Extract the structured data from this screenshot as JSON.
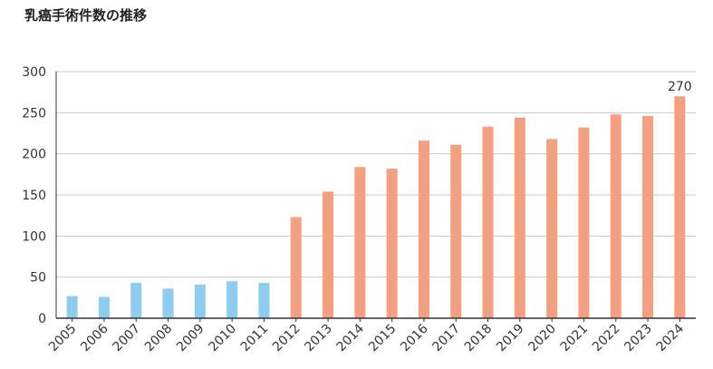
{
  "chart_data": {
    "type": "bar",
    "title": "乳癌手術件数の推移",
    "xlabel": "",
    "ylabel": "",
    "categories": [
      "2005",
      "2006",
      "2007",
      "2008",
      "2009",
      "2010",
      "2011",
      "2012",
      "2013",
      "2014",
      "2015",
      "2016",
      "2017",
      "2018",
      "2019",
      "2020",
      "2021",
      "2022",
      "2023",
      "2024"
    ],
    "values": [
      27,
      26,
      43,
      36,
      41,
      45,
      43,
      123,
      154,
      184,
      182,
      216,
      211,
      233,
      244,
      218,
      232,
      248,
      246,
      270
    ],
    "ylim": [
      0,
      300
    ],
    "yticks": [
      "0",
      "50",
      "100",
      "150",
      "200",
      "250",
      "300"
    ],
    "grid": true,
    "data_labels": [
      {
        "category": "2024",
        "text": "270"
      }
    ],
    "colors": {
      "early": "#8ecdf0",
      "late": "#f4a080",
      "grid": "#c8c8c8",
      "axis": "#333333"
    },
    "color_split_category": "2012"
  }
}
